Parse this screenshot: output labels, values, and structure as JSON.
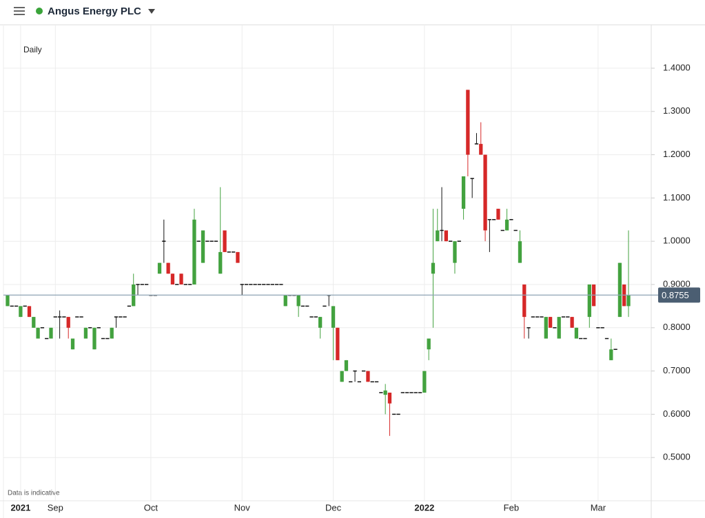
{
  "header": {
    "title": "Angus Energy PLC"
  },
  "chart_data": {
    "type": "candlestick",
    "interval": "Daily",
    "footnote": "Data is indicative",
    "categories": [
      null,
      null,
      null,
      "2021",
      null,
      null,
      null,
      null,
      null,
      null,
      null,
      "Sep",
      null,
      null,
      null,
      null,
      null,
      null,
      null,
      null,
      null,
      null,
      null,
      null,
      null,
      null,
      null,
      null,
      null,
      null,
      null,
      null,
      null,
      "Oct",
      null,
      null,
      null,
      null,
      null,
      null,
      null,
      null,
      null,
      null,
      null,
      null,
      null,
      null,
      null,
      null,
      null,
      null,
      null,
      null,
      "Nov",
      null,
      null,
      null,
      null,
      null,
      null,
      null,
      null,
      null,
      null,
      null,
      null,
      null,
      null,
      null,
      null,
      null,
      null,
      null,
      null,
      "Dec",
      null,
      null,
      null,
      null,
      null,
      null,
      null,
      null,
      null,
      null,
      null,
      null,
      null,
      null,
      null,
      null,
      null,
      null,
      null,
      null,
      "2022",
      null,
      null,
      null,
      null,
      null,
      null,
      null,
      null,
      null,
      null,
      null,
      null,
      null,
      null,
      null,
      null,
      null,
      null,
      null,
      "Feb",
      null,
      null,
      null,
      null,
      null,
      null,
      null,
      null,
      null,
      null,
      null,
      null,
      null,
      null,
      null,
      null,
      null,
      null,
      null,
      "Mar",
      null,
      null,
      null,
      null,
      null,
      null,
      null
    ],
    "ohlc": [
      [
        0.85,
        0.875,
        0.85,
        0.875
      ],
      [
        0.85,
        0.85,
        0.85,
        0.85
      ],
      [
        0.85,
        0.85,
        0.85,
        0.85
      ],
      [
        0.825,
        0.85,
        0.825,
        0.85
      ],
      [
        0.85,
        0.85,
        0.85,
        0.85
      ],
      [
        0.85,
        0.85,
        0.825,
        0.825
      ],
      [
        0.8,
        0.825,
        0.8,
        0.825
      ],
      [
        0.775,
        0.8,
        0.775,
        0.8
      ],
      [
        0.8,
        0.8,
        0.8,
        0.8
      ],
      [
        0.775,
        0.775,
        0.775,
        0.775
      ],
      [
        0.775,
        0.8,
        0.775,
        0.8
      ],
      [
        0.825,
        0.825,
        0.825,
        0.825
      ],
      [
        0.825,
        0.84,
        0.775,
        0.825
      ],
      [
        0.825,
        0.825,
        0.825,
        0.825
      ],
      [
        0.825,
        0.825,
        0.775,
        0.8
      ],
      [
        0.75,
        0.775,
        0.75,
        0.775
      ],
      [
        0.825,
        0.825,
        0.825,
        0.825
      ],
      [
        0.825,
        0.825,
        0.825,
        0.825
      ],
      [
        0.775,
        0.8,
        0.775,
        0.8
      ],
      [
        0.8,
        0.8,
        0.8,
        0.8
      ],
      [
        0.75,
        0.8,
        0.75,
        0.8
      ],
      [
        0.8,
        0.8,
        0.8,
        0.8
      ],
      [
        0.775,
        0.775,
        0.775,
        0.775
      ],
      [
        0.775,
        0.775,
        0.775,
        0.775
      ],
      [
        0.775,
        0.8,
        0.775,
        0.8
      ],
      [
        0.825,
        0.825,
        0.8,
        0.825
      ],
      [
        0.825,
        0.825,
        0.825,
        0.825
      ],
      [
        0.825,
        0.825,
        0.825,
        0.825
      ],
      [
        0.85,
        0.85,
        0.85,
        0.85
      ],
      [
        0.85,
        0.925,
        0.85,
        0.9
      ],
      [
        0.9,
        0.9,
        0.875,
        0.9
      ],
      [
        0.9,
        0.9,
        0.9,
        0.9
      ],
      [
        0.9,
        0.9,
        0.9,
        0.9
      ],
      [
        0.875,
        0.875,
        0.875,
        0.875
      ],
      [
        0.875,
        0.875,
        0.875,
        0.875
      ],
      [
        0.925,
        0.95,
        0.925,
        0.95
      ],
      [
        1.0,
        1.05,
        0.95,
        1.0
      ],
      [
        0.95,
        0.95,
        0.925,
        0.925
      ],
      [
        0.925,
        0.925,
        0.9,
        0.9
      ],
      [
        0.9,
        0.9,
        0.9,
        0.9
      ],
      [
        0.925,
        0.925,
        0.9,
        0.9
      ],
      [
        0.9,
        0.9,
        0.9,
        0.9
      ],
      [
        0.9,
        0.9,
        0.9,
        0.9
      ],
      [
        0.9,
        1.075,
        0.9,
        1.05
      ],
      [
        1.0,
        1.0,
        1.0,
        1.0
      ],
      [
        0.95,
        1.025,
        0.95,
        1.025
      ],
      [
        1.0,
        1.0,
        1.0,
        1.0
      ],
      [
        1.0,
        1.0,
        1.0,
        1.0
      ],
      [
        1.0,
        1.0,
        1.0,
        1.0
      ],
      [
        0.925,
        1.125,
        0.925,
        0.975
      ],
      [
        1.025,
        1.025,
        0.975,
        0.975
      ],
      [
        0.975,
        0.975,
        0.975,
        0.975
      ],
      [
        0.975,
        0.975,
        0.975,
        0.975
      ],
      [
        0.975,
        0.975,
        0.95,
        0.95
      ],
      [
        0.9,
        0.9,
        0.875,
        0.9
      ],
      [
        0.9,
        0.9,
        0.9,
        0.9
      ],
      [
        0.9,
        0.9,
        0.9,
        0.9
      ],
      [
        0.9,
        0.9,
        0.9,
        0.9
      ],
      [
        0.9,
        0.9,
        0.9,
        0.9
      ],
      [
        0.9,
        0.9,
        0.9,
        0.9
      ],
      [
        0.9,
        0.9,
        0.9,
        0.9
      ],
      [
        0.9,
        0.9,
        0.9,
        0.9
      ],
      [
        0.9,
        0.9,
        0.9,
        0.9
      ],
      [
        0.9,
        0.9,
        0.9,
        0.9
      ],
      [
        0.85,
        0.875,
        0.85,
        0.875
      ],
      [
        0.875,
        0.875,
        0.875,
        0.875
      ],
      [
        0.875,
        0.875,
        0.875,
        0.875
      ],
      [
        0.85,
        0.875,
        0.825,
        0.875
      ],
      [
        0.85,
        0.85,
        0.85,
        0.85
      ],
      [
        0.85,
        0.85,
        0.85,
        0.85
      ],
      [
        0.825,
        0.825,
        0.825,
        0.825
      ],
      [
        0.825,
        0.825,
        0.825,
        0.825
      ],
      [
        0.8,
        0.825,
        0.775,
        0.825
      ],
      [
        0.85,
        0.85,
        0.85,
        0.85
      ],
      [
        0.875,
        0.875,
        0.85,
        0.875
      ],
      [
        0.8,
        0.85,
        0.725,
        0.85
      ],
      [
        0.8,
        0.8,
        0.725,
        0.725
      ],
      [
        0.675,
        0.7,
        0.675,
        0.7
      ],
      [
        0.7,
        0.725,
        0.7,
        0.725
      ],
      [
        0.675,
        0.675,
        0.675,
        0.675
      ],
      [
        0.7,
        0.7,
        0.675,
        0.7
      ],
      [
        0.675,
        0.675,
        0.675,
        0.675
      ],
      [
        0.7,
        0.7,
        0.7,
        0.7
      ],
      [
        0.7,
        0.7,
        0.675,
        0.675
      ],
      [
        0.675,
        0.675,
        0.675,
        0.675
      ],
      [
        0.675,
        0.675,
        0.675,
        0.675
      ],
      [
        0.65,
        0.65,
        0.65,
        0.65
      ],
      [
        0.645,
        0.67,
        0.6,
        0.655
      ],
      [
        0.65,
        0.65,
        0.55,
        0.625
      ],
      [
        0.6,
        0.6,
        0.6,
        0.6
      ],
      [
        0.6,
        0.6,
        0.6,
        0.6
      ],
      [
        0.65,
        0.65,
        0.65,
        0.65
      ],
      [
        0.65,
        0.65,
        0.65,
        0.65
      ],
      [
        0.65,
        0.65,
        0.65,
        0.65
      ],
      [
        0.65,
        0.65,
        0.65,
        0.65
      ],
      [
        0.65,
        0.65,
        0.65,
        0.65
      ],
      [
        0.65,
        0.7,
        0.65,
        0.7
      ],
      [
        0.75,
        0.775,
        0.725,
        0.775
      ],
      [
        0.925,
        1.075,
        0.8,
        0.95
      ],
      [
        1.0,
        1.075,
        1.0,
        1.025
      ],
      [
        1.025,
        1.125,
        1.0,
        1.025
      ],
      [
        1.025,
        1.025,
        1.0,
        1.0
      ],
      [
        1.0,
        1.0,
        1.0,
        1.0
      ],
      [
        0.95,
        1.0,
        0.925,
        1.0
      ],
      [
        1.0,
        1.0,
        1.0,
        1.0
      ],
      [
        1.075,
        1.15,
        1.05,
        1.15
      ],
      [
        1.35,
        1.35,
        1.15,
        1.2
      ],
      [
        1.145,
        1.145,
        1.1,
        1.145
      ],
      [
        1.225,
        1.25,
        1.225,
        1.225
      ],
      [
        1.225,
        1.275,
        1.2,
        1.2
      ],
      [
        1.2,
        1.2,
        1.0,
        1.025
      ],
      [
        1.05,
        1.05,
        0.975,
        1.05
      ],
      [
        1.05,
        1.05,
        1.05,
        1.05
      ],
      [
        1.075,
        1.075,
        1.05,
        1.05
      ],
      [
        1.025,
        1.025,
        1.025,
        1.025
      ],
      [
        1.025,
        1.075,
        1.025,
        1.05
      ],
      [
        1.05,
        1.05,
        1.05,
        1.05
      ],
      [
        1.025,
        1.025,
        1.025,
        1.025
      ],
      [
        0.95,
        1.025,
        0.95,
        1.0
      ],
      [
        0.9,
        0.9,
        0.775,
        0.825
      ],
      [
        0.8,
        0.8,
        0.775,
        0.8
      ],
      [
        0.825,
        0.825,
        0.825,
        0.825
      ],
      [
        0.825,
        0.825,
        0.825,
        0.825
      ],
      [
        0.825,
        0.825,
        0.825,
        0.825
      ],
      [
        0.775,
        0.825,
        0.775,
        0.825
      ],
      [
        0.825,
        0.825,
        0.8,
        0.8
      ],
      [
        0.8,
        0.8,
        0.8,
        0.8
      ],
      [
        0.775,
        0.825,
        0.775,
        0.825
      ],
      [
        0.825,
        0.825,
        0.825,
        0.825
      ],
      [
        0.825,
        0.825,
        0.825,
        0.825
      ],
      [
        0.825,
        0.825,
        0.8,
        0.8
      ],
      [
        0.775,
        0.8,
        0.775,
        0.8
      ],
      [
        0.775,
        0.775,
        0.775,
        0.775
      ],
      [
        0.775,
        0.775,
        0.775,
        0.775
      ],
      [
        0.825,
        0.9,
        0.8,
        0.9
      ],
      [
        0.9,
        0.9,
        0.85,
        0.85
      ],
      [
        0.8,
        0.8,
        0.8,
        0.8
      ],
      [
        0.8,
        0.8,
        0.8,
        0.8
      ],
      [
        0.775,
        0.775,
        0.775,
        0.775
      ],
      [
        0.725,
        0.775,
        0.725,
        0.75
      ],
      [
        0.75,
        0.75,
        0.75,
        0.75
      ],
      [
        0.825,
        0.95,
        0.825,
        0.95
      ],
      [
        0.9,
        0.9,
        0.85,
        0.85
      ],
      [
        0.85,
        1.025,
        0.825,
        0.875
      ]
    ],
    "up_color": "#43a23f",
    "down_color": "#d62828",
    "doji_color": "#111111",
    "last_price": 0.8755,
    "last_price_color": "#4b5e72",
    "ylim": [
      0.4,
      1.5
    ],
    "yticks": [
      {
        "value": 0.5,
        "label": "0.5000"
      },
      {
        "value": 0.6,
        "label": "0.6000"
      },
      {
        "value": 0.7,
        "label": "0.7000"
      },
      {
        "value": 0.8,
        "label": "0.8000"
      },
      {
        "value": 0.9,
        "label": "0.9000"
      },
      {
        "value": 1.0,
        "label": "1.0000"
      },
      {
        "value": 1.1,
        "label": "1.1000"
      },
      {
        "value": 1.2,
        "label": "1.2000"
      },
      {
        "value": 1.3,
        "label": "1.3000"
      },
      {
        "value": 1.4,
        "label": "1.4000"
      }
    ],
    "grid": true
  }
}
